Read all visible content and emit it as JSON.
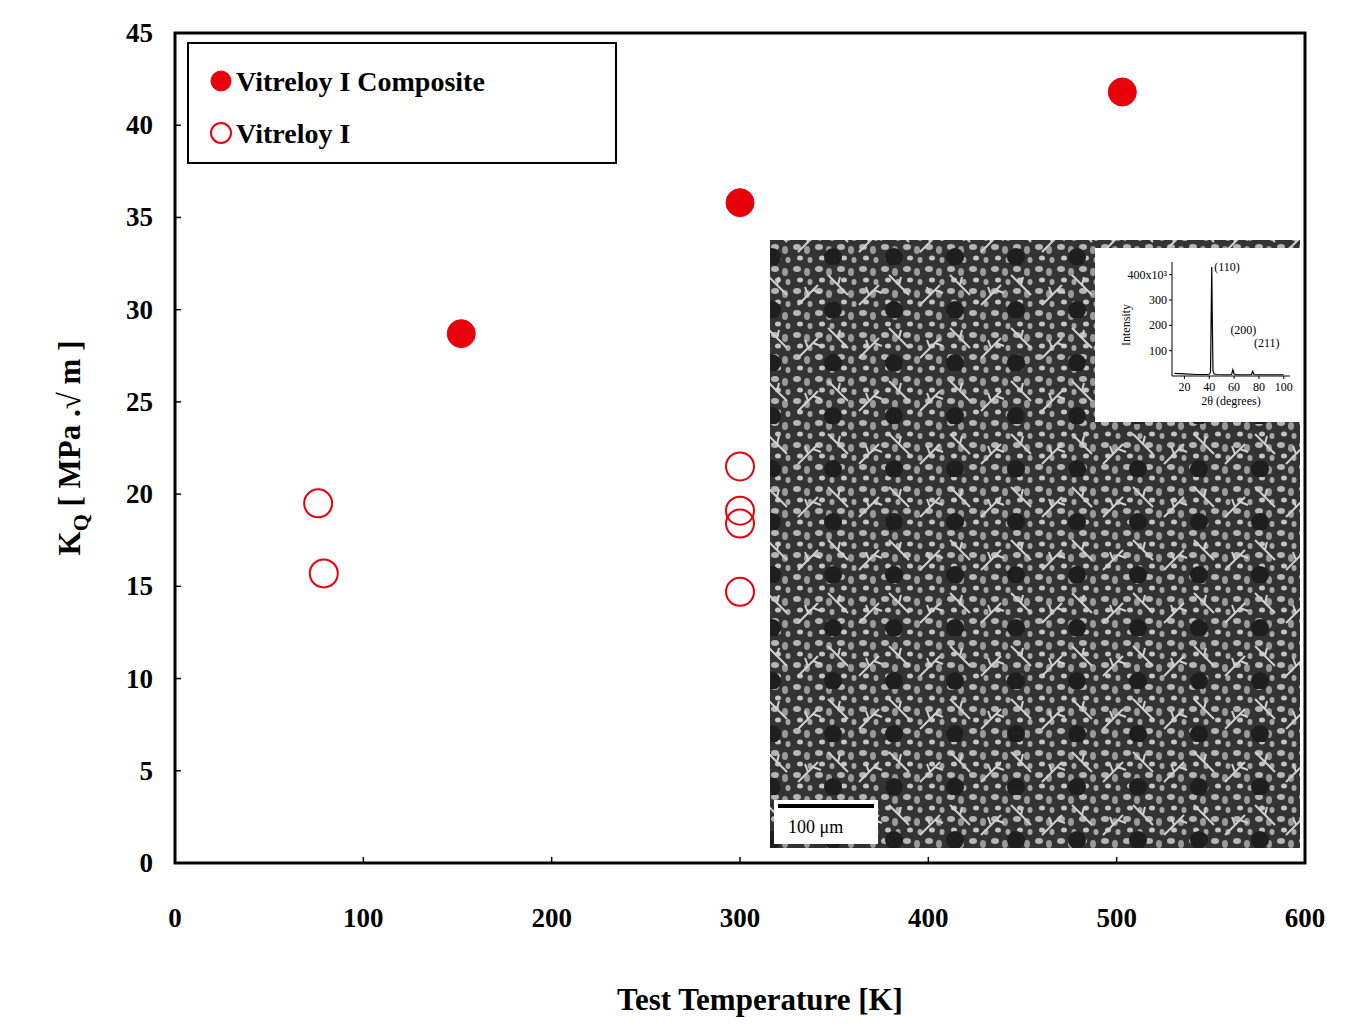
{
  "chart_data": [
    {
      "type": "scatter",
      "xlabel": "Test Temperature [K]",
      "ylabel": {
        "text": "K",
        "subscript": "Q",
        "rest": " [ MPa .√ m ]"
      },
      "xlim": [
        0,
        600
      ],
      "xticks": [
        0,
        100,
        200,
        300,
        400,
        500,
        600
      ],
      "ylim": [
        0,
        45
      ],
      "yticks": [
        0,
        5,
        10,
        15,
        20,
        25,
        30,
        35,
        40,
        45
      ],
      "grid": false,
      "legend": "top-left",
      "series": [
        {
          "name": "Vitreloy I Composite",
          "color": "#e8000b",
          "marker": "filled-circle",
          "x": [
            152,
            300,
            503
          ],
          "values": [
            28.7,
            35.8,
            41.8
          ]
        },
        {
          "name": "Vitreloy I",
          "color": "#e8000b",
          "marker": "open-circle",
          "x": [
            76,
            79,
            300,
            300,
            300,
            300
          ],
          "values": [
            19.5,
            15.7,
            21.5,
            19.1,
            18.4,
            14.7
          ]
        }
      ],
      "annotations": [
        {
          "text": "100 μm"
        }
      ]
    },
    {
      "type": "line",
      "xlabel": "2θ (degrees)",
      "ylabel": "Intensity",
      "xlim": [
        10,
        105
      ],
      "xticks": [
        20,
        40,
        60,
        80,
        100
      ],
      "ylim": [
        0,
        450
      ],
      "yticks": [
        100,
        200,
        300,
        {
          "value": 400,
          "label": "400x10³"
        }
      ],
      "series": [
        {
          "color": "#000000",
          "x": [
            12,
            20,
            30,
            38,
            40,
            41,
            42,
            42.5,
            43,
            44,
            46,
            55,
            58,
            59,
            60,
            62,
            70,
            74,
            75,
            76,
            80,
            90,
            100
          ],
          "values": [
            10,
            8,
            6,
            6,
            7,
            15,
            430,
            200,
            20,
            8,
            6,
            5,
            6,
            25,
            8,
            5,
            5,
            6,
            18,
            6,
            5,
            5,
            5
          ]
        }
      ],
      "annotations": [
        {
          "text": "(110)",
          "x": 44,
          "y": 415
        },
        {
          "text": "(200)",
          "x": 57,
          "y": 165
        },
        {
          "text": "(211)",
          "x": 76,
          "y": 115
        }
      ]
    }
  ]
}
